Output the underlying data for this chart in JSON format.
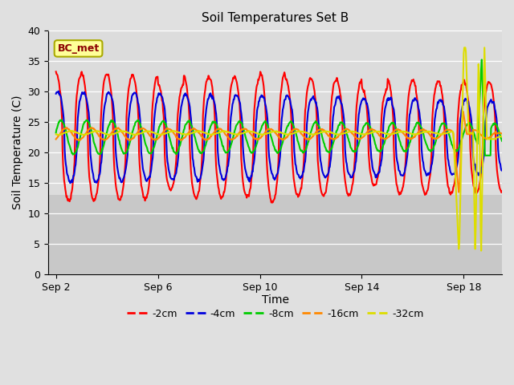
{
  "title": "Soil Temperatures Set B",
  "xlabel": "Time",
  "ylabel": "Soil Temperature (C)",
  "ylim": [
    0,
    40
  ],
  "colors": {
    "-2cm": "#ff0000",
    "-4cm": "#0000dd",
    "-8cm": "#00cc00",
    "-16cm": "#ff8800",
    "-32cm": "#dddd00"
  },
  "line_width": 1.5,
  "x_ticks_labels": [
    "Sep 2",
    "Sep 6",
    "Sep 10",
    "Sep 14",
    "Sep 18"
  ],
  "x_ticks_pos": [
    0,
    4,
    8,
    12,
    16
  ],
  "y_ticks": [
    0,
    5,
    10,
    15,
    20,
    25,
    30,
    35,
    40
  ],
  "annotation_text": "BC_met",
  "fig_bg": "#e0e0e0",
  "ax_bg_upper": "#d8d8d8",
  "grid_color": "#c8c8c8",
  "legend_labels": [
    "-2cm",
    "-4cm",
    "-8cm",
    "-16cm",
    "-32cm"
  ]
}
